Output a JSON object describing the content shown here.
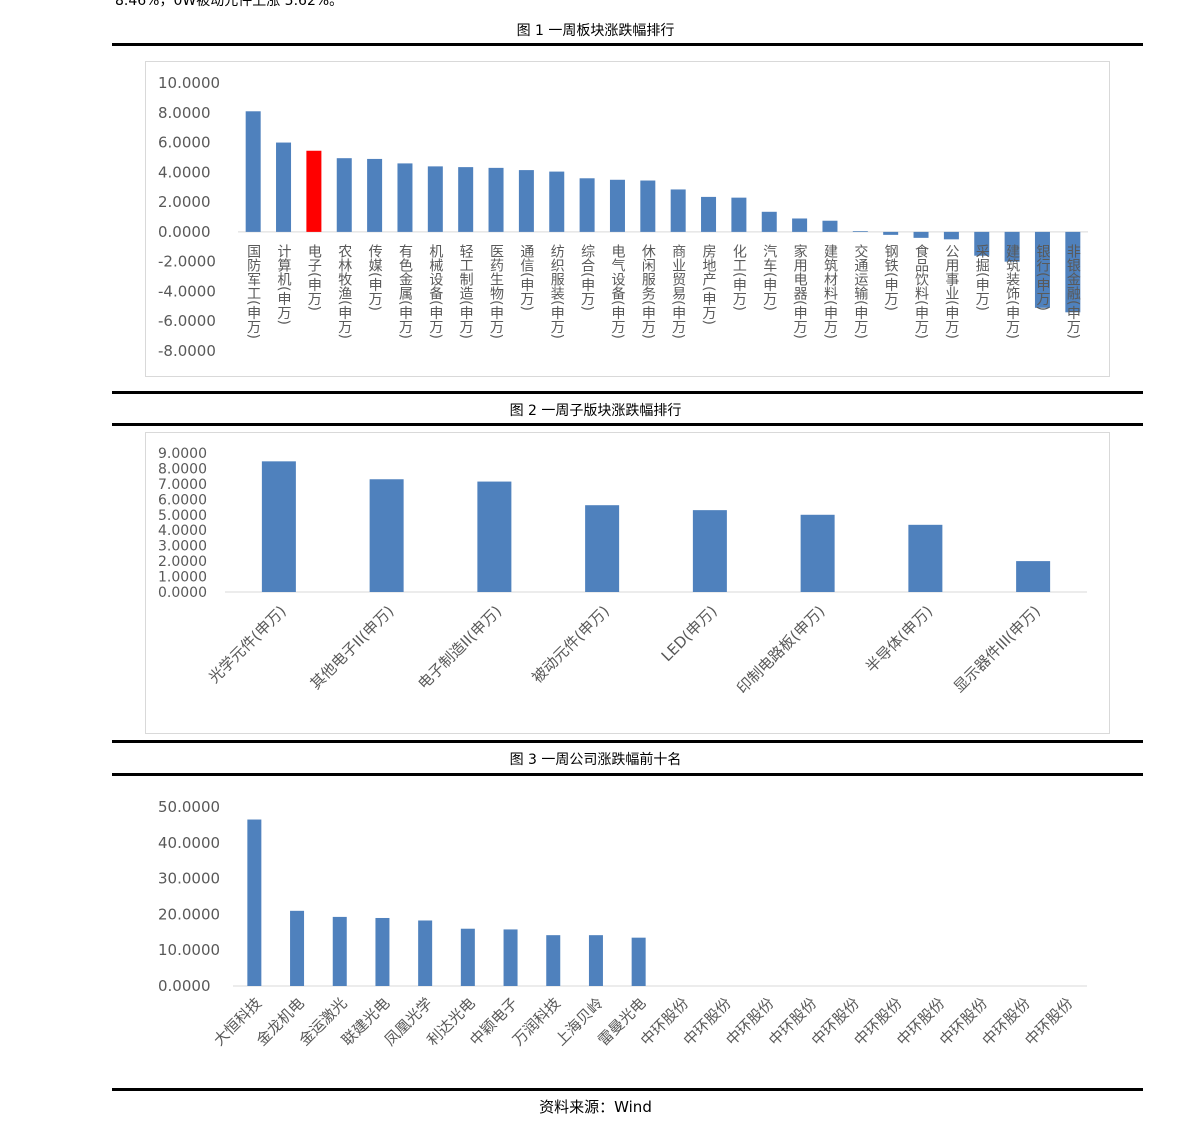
{
  "header_fragment": "8.46%，0W被动元件上涨 5.62%。",
  "figures": [
    {
      "caption": "图 1 一周板块涨跌幅排行"
    },
    {
      "caption": "图 2 一周子版块涨跌幅排行"
    },
    {
      "caption": "图 3 一周公司涨跌幅前十名"
    }
  ],
  "source": "资料来源：Wind",
  "colors": {
    "bar": "#4f81bd",
    "highlight": "#ff0000",
    "axis": "#d9d9d9",
    "text": "#595959"
  },
  "chart_data": [
    {
      "type": "bar",
      "title": "",
      "ylim": [
        -8,
        10
      ],
      "yticks": [
        "10.0000",
        "8.0000",
        "6.0000",
        "4.0000",
        "2.0000",
        "0.0000",
        "-2.0000",
        "-4.0000",
        "-6.0000",
        "-8.0000"
      ],
      "highlight_index": 2,
      "categories": [
        "国防军工(申万)",
        "计算机(申万)",
        "电子(申万)",
        "农林牧渔(申万)",
        "传媒(申万)",
        "有色金属(申万)",
        "机械设备(申万)",
        "轻工制造(申万)",
        "医药生物(申万)",
        "通信(申万)",
        "纺织服装(申万)",
        "综合(申万)",
        "电气设备(申万)",
        "休闲服务(申万)",
        "商业贸易(申万)",
        "房地产(申万)",
        "化工(申万)",
        "汽车(申万)",
        "家用电器(申万)",
        "建筑材料(申万)",
        "交通运输(申万)",
        "钢铁(申万)",
        "食品饮料(申万)",
        "公用事业(申万)",
        "采掘(申万)",
        "建筑装饰(申万)",
        "银行(申万)",
        "非银金融(申万)"
      ],
      "values": [
        8.1,
        6.0,
        5.45,
        4.95,
        4.9,
        4.6,
        4.4,
        4.35,
        4.3,
        4.15,
        4.05,
        3.6,
        3.5,
        3.45,
        2.85,
        2.35,
        2.3,
        1.35,
        0.9,
        0.75,
        0.05,
        -0.2,
        -0.4,
        -0.5,
        -1.6,
        -2.0,
        -5.1,
        -5.4
      ]
    },
    {
      "type": "bar",
      "title": "",
      "ylim": [
        0,
        9
      ],
      "yticks": [
        "9.0000",
        "8.0000",
        "7.0000",
        "6.0000",
        "5.0000",
        "4.0000",
        "3.0000",
        "2.0000",
        "1.0000",
        "0.0000"
      ],
      "categories": [
        "光学元件(申万)",
        "其他电子II(申万)",
        "电子制造II(申万)",
        "被动元件(申万)",
        "LED(申万)",
        "印制电路板(申万)",
        "半导体(申万)",
        "显示器件III(申万)"
      ],
      "values": [
        8.46,
        7.3,
        7.15,
        5.62,
        5.3,
        5.0,
        4.35,
        2.0
      ]
    },
    {
      "type": "bar",
      "title": "",
      "ylim": [
        0,
        50
      ],
      "yticks": [
        "50.0000",
        "40.0000",
        "30.0000",
        "20.0000",
        "10.0000",
        "0.0000"
      ],
      "categories": [
        "大恒科技",
        "金龙机电",
        "金运激光",
        "联建光电",
        "凤凰光学",
        "利达光电",
        "中颖电子",
        "万润科技",
        "上海贝岭",
        "雷曼光电",
        "中环股份",
        "中环股份",
        "中环股份",
        "中环股份",
        "中环股份",
        "中环股份",
        "中环股份",
        "中环股份",
        "中环股份",
        "中环股份"
      ],
      "values": [
        46.5,
        21.0,
        19.3,
        19.0,
        18.3,
        16.0,
        15.8,
        14.2,
        14.2,
        13.5,
        0,
        0,
        0,
        0,
        0,
        0,
        0,
        0,
        0,
        0
      ]
    }
  ]
}
